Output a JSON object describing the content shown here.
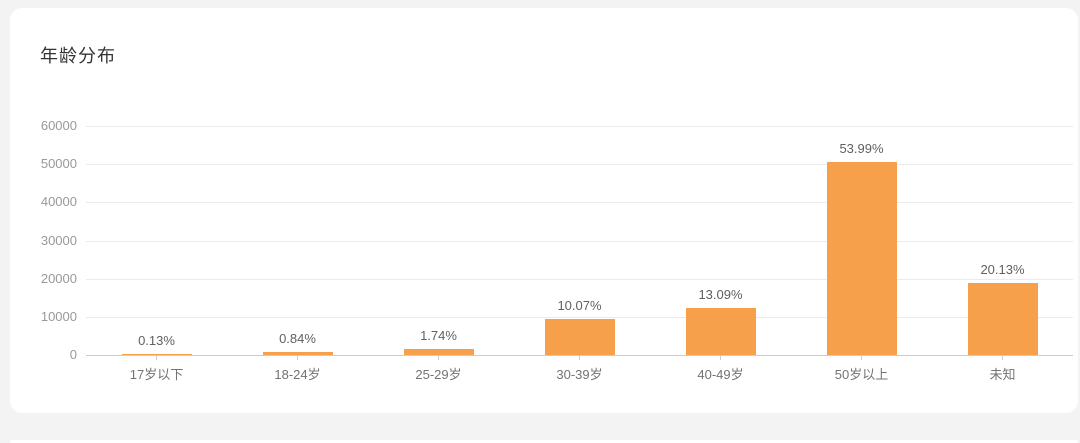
{
  "page": {
    "background": "#f3f3f3"
  },
  "card": {
    "title": "年龄分布"
  },
  "chart_data": {
    "type": "bar",
    "title": "年龄分布",
    "categories": [
      "17岁以下",
      "18-24岁",
      "25-29岁",
      "30-39岁",
      "40-49岁",
      "50岁以上",
      "未知"
    ],
    "values": [
      122,
      785,
      1627,
      9415,
      12240,
      50480,
      18820
    ],
    "percent_labels": [
      "0.13%",
      "0.84%",
      "1.74%",
      "10.07%",
      "13.09%",
      "53.99%",
      "20.13%"
    ],
    "xlabel": "",
    "ylabel": "",
    "ylim": [
      0,
      60000
    ],
    "yticks": [
      0,
      10000,
      20000,
      30000,
      40000,
      50000,
      60000
    ],
    "grid": true,
    "legend": "none",
    "bar_color": "#F7A04B",
    "value_label_color": "#606060",
    "y_axis_label_color": "#999999",
    "x_axis_label_color": "#737373",
    "grid_color": "#ebebeb",
    "axis_line_color": "#cccccc"
  }
}
